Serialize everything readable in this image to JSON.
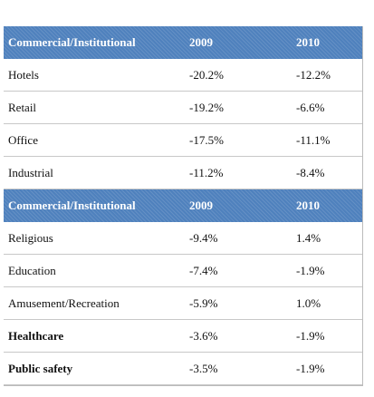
{
  "sections": [
    {
      "header": [
        "Commercial/Institutional",
        "2009",
        "2010"
      ],
      "rows": [
        [
          "Hotels",
          "-20.2%",
          "-12.2%"
        ],
        [
          "Retail",
          "-19.2%",
          "-6.6%"
        ],
        [
          "Office",
          "-17.5%",
          "-11.1%"
        ],
        [
          "Industrial",
          "-11.2%",
          "-8.4%"
        ]
      ]
    },
    {
      "header": [
        "Commercial/Institutional",
        "2009",
        "2010"
      ],
      "rows": [
        [
          "Religious",
          "-9.4%",
          "1.4%"
        ],
        [
          "Education",
          "-7.4%",
          "-1.9%"
        ],
        [
          "Amusement/Recreation",
          "-5.9%",
          "1.0%"
        ],
        [
          "Healthcare",
          "-3.6%",
          "-1.9%"
        ],
        [
          "Public safety",
          "-3.5%",
          "-1.9%"
        ]
      ]
    }
  ]
}
